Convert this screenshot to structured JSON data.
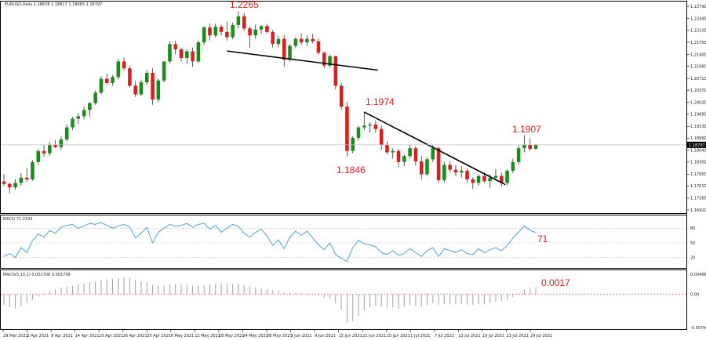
{
  "header": {
    "symbol_info": "EURUSD,Daily  1.18678 1.18817 1.18665 1.18797",
    "rsi_label": "RSI(3) 71.2333",
    "macd_label": "MACD(5,10,1) 0.001706 0.001706"
  },
  "colors": {
    "up": "#1a8c1a",
    "down": "#e01b1b",
    "trendline": "#000000",
    "rsi_line": "#4da3d8",
    "macd_hist": "#a0a0a0",
    "annotation": "#d81e1e",
    "level_line": "#e05050"
  },
  "annotations": {
    "high_1": "1.2265",
    "high_2": "1.1974",
    "low_1": "1.1846",
    "high_3": "1.1907",
    "rsi_value": "71",
    "macd_value": "0.0017"
  },
  "chart_data": [
    {
      "type": "candlestick",
      "series_name": "EURUSD,Daily",
      "ylim": [
        1.1692,
        1.2279
      ],
      "y_ticks": [
        "1.22790",
        "1.22440",
        "1.22100",
        "1.21750",
        "1.21400",
        "1.21060",
        "1.20710",
        "1.20370",
        "1.20020",
        "1.19680",
        "1.19330",
        "1.18990",
        "1.18640",
        "1.18300",
        "1.17950",
        "1.17610",
        "1.17260",
        "1.16920"
      ],
      "current_price": "1.18797",
      "x_ticks": [
        "29 Mar 2021",
        "2 Apr 2021",
        "8 Apr 2021",
        "14 Apr 2021",
        "20 Apr 2021",
        "26 Apr 2021",
        "30 Apr 2021",
        "6 May 2021",
        "12 May 2021",
        "18 May 2021",
        "24 May 2021",
        "28 May 2021",
        "3 Jun 2021",
        "9 Jun 2021",
        "15 Jun 2021",
        "21 Jun 2021",
        "25 Jun 2021",
        "1 Jul 2021",
        "7 Jul 2021",
        "13 Jul 2021",
        "19 Jul 2021",
        "23 Jul 2021",
        "29 Jul 2021"
      ],
      "candles": [
        [
          1.1774,
          1.1795,
          1.1761,
          1.1767
        ],
        [
          1.1767,
          1.1772,
          1.174,
          1.1757
        ],
        [
          1.1757,
          1.1781,
          1.175,
          1.177
        ],
        [
          1.177,
          1.1798,
          1.1762,
          1.1785
        ],
        [
          1.1785,
          1.1812,
          1.1772,
          1.178
        ],
        [
          1.178,
          1.1835,
          1.1776,
          1.183
        ],
        [
          1.183,
          1.1868,
          1.1822,
          1.1862
        ],
        [
          1.1862,
          1.1879,
          1.1845,
          1.1855
        ],
        [
          1.1855,
          1.1888,
          1.1848,
          1.188
        ],
        [
          1.188,
          1.1893,
          1.187,
          1.1873
        ],
        [
          1.1873,
          1.1905,
          1.1866,
          1.1895
        ],
        [
          1.1895,
          1.1938,
          1.189,
          1.193
        ],
        [
          1.193,
          1.196,
          1.1922,
          1.1955
        ],
        [
          1.1955,
          1.1972,
          1.194,
          1.1962
        ],
        [
          1.1962,
          1.199,
          1.1953,
          1.198
        ],
        [
          1.198,
          1.2003,
          1.196,
          1.2
        ],
        [
          1.2,
          1.2036,
          1.1995,
          1.203
        ],
        [
          1.203,
          1.2078,
          1.2025,
          1.207
        ],
        [
          1.207,
          1.2085,
          1.2052,
          1.2058
        ],
        [
          1.2058,
          1.208,
          1.205,
          1.2075
        ],
        [
          1.2075,
          1.2128,
          1.2068,
          1.212
        ],
        [
          1.212,
          1.2131,
          1.2093,
          1.21
        ],
        [
          1.21,
          1.2108,
          1.2045,
          1.205
        ],
        [
          1.205,
          1.2065,
          1.2018,
          1.2025
        ],
        [
          1.2025,
          1.2068,
          1.202,
          1.206
        ],
        [
          1.206,
          1.2095,
          1.2052,
          1.2087
        ],
        [
          1.2087,
          1.2101,
          1.1995,
          1.201
        ],
        [
          1.201,
          1.207,
          1.2002,
          1.2065
        ],
        [
          1.2065,
          1.212,
          1.206,
          1.212
        ],
        [
          1.212,
          1.218,
          1.2115,
          1.217
        ],
        [
          1.217,
          1.218,
          1.214,
          1.2155
        ],
        [
          1.2155,
          1.216,
          1.212,
          1.213
        ],
        [
          1.213,
          1.2155,
          1.2113,
          1.2149
        ],
        [
          1.2149,
          1.216,
          1.2105,
          1.212
        ],
        [
          1.212,
          1.218,
          1.2115,
          1.2175
        ],
        [
          1.2175,
          1.2222,
          1.2168,
          1.2218
        ],
        [
          1.2218,
          1.223,
          1.218,
          1.2195
        ],
        [
          1.2195,
          1.2229,
          1.219,
          1.222
        ],
        [
          1.222,
          1.2226,
          1.2195,
          1.2205
        ],
        [
          1.2205,
          1.2235,
          1.218,
          1.219
        ],
        [
          1.219,
          1.2232,
          1.2184,
          1.2225
        ],
        [
          1.2225,
          1.2265,
          1.2215,
          1.225
        ],
        [
          1.225,
          1.226,
          1.2208,
          1.2215
        ],
        [
          1.2215,
          1.222,
          1.216,
          1.2195
        ],
        [
          1.2195,
          1.2226,
          1.2185,
          1.2212
        ],
        [
          1.2212,
          1.2225,
          1.22,
          1.2222
        ],
        [
          1.2222,
          1.2228,
          1.22,
          1.2205
        ],
        [
          1.2205,
          1.221,
          1.216,
          1.217
        ],
        [
          1.217,
          1.2195,
          1.216,
          1.2185
        ],
        [
          1.2185,
          1.2196,
          1.2105,
          1.2125
        ],
        [
          1.2125,
          1.217,
          1.2119,
          1.2165
        ],
        [
          1.2165,
          1.219,
          1.2158,
          1.2185
        ],
        [
          1.2185,
          1.2201,
          1.2168,
          1.2175
        ],
        [
          1.2175,
          1.2195,
          1.2164,
          1.2185
        ],
        [
          1.2185,
          1.22,
          1.2172,
          1.2178
        ],
        [
          1.2178,
          1.2186,
          1.214,
          1.2145
        ],
        [
          1.2145,
          1.2149,
          1.21,
          1.2108
        ],
        [
          1.2108,
          1.214,
          1.2102,
          1.2135
        ],
        [
          1.2135,
          1.2137,
          1.204,
          1.205
        ],
        [
          1.205,
          1.2058,
          1.198,
          1.199
        ],
        [
          1.199,
          1.2003,
          1.1846,
          1.1862
        ],
        [
          1.1862,
          1.1905,
          1.1855,
          1.19
        ],
        [
          1.19,
          1.1935,
          1.1893,
          1.193
        ],
        [
          1.193,
          1.1974,
          1.1922,
          1.1935
        ],
        [
          1.1935,
          1.1945,
          1.1915,
          1.1938
        ],
        [
          1.1938,
          1.195,
          1.1915,
          1.1925
        ],
        [
          1.1925,
          1.1935,
          1.1865,
          1.188
        ],
        [
          1.188,
          1.189,
          1.1852,
          1.1858
        ],
        [
          1.1858,
          1.187,
          1.184,
          1.1862
        ],
        [
          1.1862,
          1.1868,
          1.1815,
          1.183
        ],
        [
          1.183,
          1.1852,
          1.1818,
          1.1847
        ],
        [
          1.1847,
          1.188,
          1.184,
          1.187
        ],
        [
          1.187,
          1.1875,
          1.182,
          1.1832
        ],
        [
          1.1832,
          1.1848,
          1.178,
          1.1795
        ],
        [
          1.1795,
          1.1845,
          1.179,
          1.1838
        ],
        [
          1.1838,
          1.188,
          1.183,
          1.187
        ],
        [
          1.187,
          1.1875,
          1.177,
          1.1778
        ],
        [
          1.1778,
          1.183,
          1.1772,
          1.1822
        ],
        [
          1.1822,
          1.1833,
          1.18,
          1.1808
        ],
        [
          1.1808,
          1.1822,
          1.179,
          1.18
        ],
        [
          1.18,
          1.1818,
          1.1785,
          1.1805
        ],
        [
          1.1805,
          1.1812,
          1.1772,
          1.178
        ],
        [
          1.178,
          1.1786,
          1.1752,
          1.177
        ],
        [
          1.177,
          1.1795,
          1.1762,
          1.179
        ],
        [
          1.179,
          1.18,
          1.177,
          1.1775
        ],
        [
          1.1775,
          1.1795,
          1.1755,
          1.1785
        ],
        [
          1.1785,
          1.181,
          1.1778,
          1.179
        ],
        [
          1.179,
          1.18,
          1.176,
          1.177
        ],
        [
          1.177,
          1.181,
          1.1763,
          1.1805
        ],
        [
          1.1805,
          1.184,
          1.1798,
          1.183
        ],
        [
          1.183,
          1.1878,
          1.1822,
          1.187
        ],
        [
          1.187,
          1.1907,
          1.1858,
          1.188
        ],
        [
          1.188,
          1.1898,
          1.1862,
          1.1868
        ],
        [
          1.1868,
          1.1882,
          1.1866,
          1.188
        ]
      ]
    },
    {
      "type": "line",
      "series_name": "RSI(3)",
      "ylim": [
        0,
        100
      ],
      "levels": [
        80,
        50,
        20
      ],
      "y_ticks": [
        "80",
        "50",
        "20"
      ],
      "current": "71.2333",
      "values": [
        22,
        28,
        20,
        40,
        30,
        55,
        68,
        62,
        75,
        70,
        82,
        86,
        88,
        80,
        85,
        90,
        88,
        92,
        86,
        80,
        85,
        88,
        82,
        60,
        70,
        82,
        50,
        72,
        80,
        88,
        84,
        86,
        90,
        82,
        88,
        90,
        78,
        86,
        72,
        80,
        88,
        84,
        70,
        62,
        72,
        78,
        64,
        45,
        56,
        38,
        62,
        74,
        66,
        74,
        60,
        46,
        36,
        50,
        26,
        18,
        12,
        40,
        55,
        48,
        46,
        42,
        30,
        26,
        34,
        24,
        28,
        38,
        30,
        22,
        34,
        40,
        22,
        38,
        34,
        30,
        36,
        28,
        26,
        38,
        30,
        36,
        40,
        34,
        44,
        60,
        72,
        85,
        76,
        71
      ]
    },
    {
      "type": "bar",
      "series_name": "MACD(5,10,1)",
      "ylim": [
        -0.00764,
        0.00466
      ],
      "y_ticks": [
        "0.004663",
        "0.00",
        "-0.007661"
      ],
      "current": "0.001706",
      "values": [
        -0.0025,
        -0.003,
        -0.0033,
        -0.0028,
        -0.002,
        -0.0012,
        -0.0005,
        0.0002,
        0.0008,
        0.0012,
        0.0016,
        0.0018,
        0.002,
        0.0023,
        0.0025,
        0.0028,
        0.003,
        0.0033,
        0.0035,
        0.0036,
        0.0038,
        0.004,
        0.0038,
        0.0033,
        0.003,
        0.0028,
        0.0022,
        0.002,
        0.0021,
        0.0023,
        0.0024,
        0.0023,
        0.0022,
        0.002,
        0.002,
        0.0022,
        0.0024,
        0.0025,
        0.0026,
        0.0025,
        0.0024,
        0.0024,
        0.0022,
        0.0018,
        0.0016,
        0.0014,
        0.0012,
        0.001,
        0.0008,
        0.0004,
        0.0003,
        0.0004,
        0.0003,
        0.0002,
        0.0001,
        -0.0003,
        -0.0008,
        -0.001,
        -0.002,
        -0.0035,
        -0.0065,
        -0.0062,
        -0.005,
        -0.0038,
        -0.003,
        -0.0026,
        -0.0028,
        -0.003,
        -0.003,
        -0.0033,
        -0.003,
        -0.0025,
        -0.0027,
        -0.003,
        -0.0025,
        -0.002,
        -0.0025,
        -0.0022,
        -0.0022,
        -0.0023,
        -0.0022,
        -0.0024,
        -0.0025,
        -0.0022,
        -0.0022,
        -0.002,
        -0.0017,
        -0.0016,
        -0.0012,
        -0.0006,
        0.0002,
        0.0012,
        0.0015,
        0.0017
      ]
    }
  ]
}
